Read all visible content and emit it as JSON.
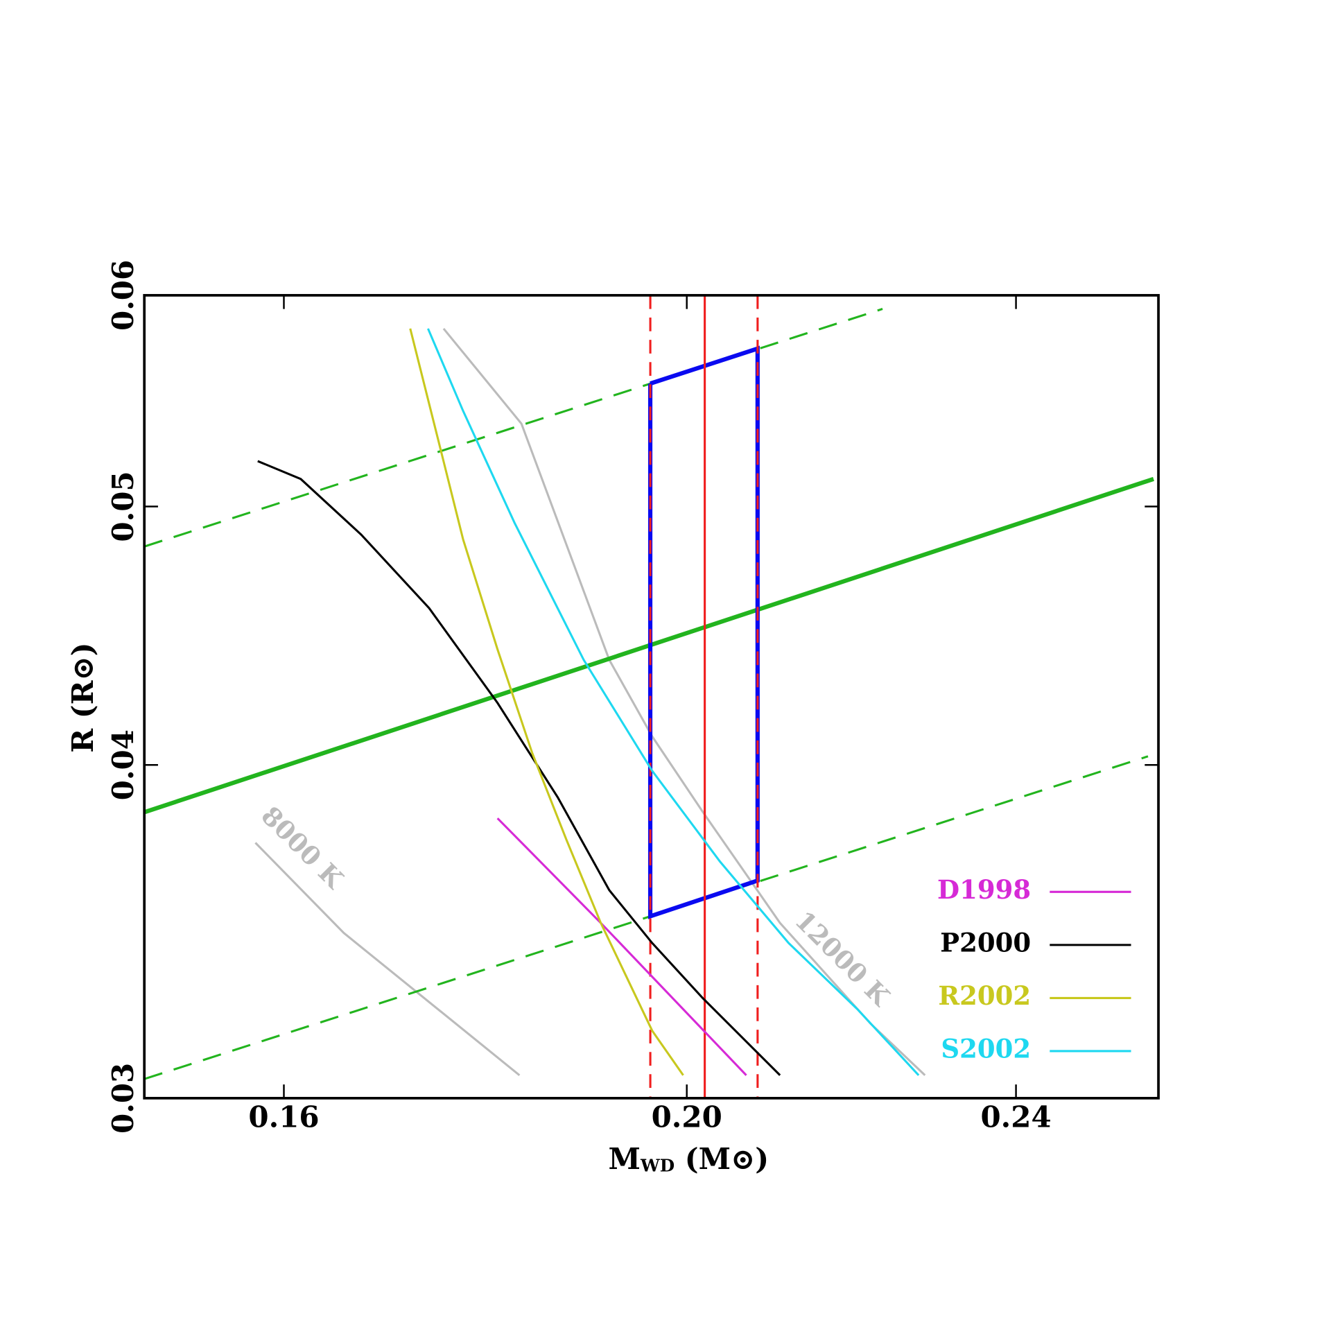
{
  "chart_data": {
    "type": "line",
    "xlabel": {
      "main": "M",
      "sub": "WD",
      "rest": " (M⊙)"
    },
    "ylabel": "R (R⊙)",
    "xscale": "log",
    "yscale": "log",
    "xlim": [
      0.1481,
      0.2597
    ],
    "ylim": [
      0.03,
      0.06
    ],
    "xticks": [
      0.16,
      {
        "value": 0.2,
        "label": "0.20"
      },
      0.24
    ],
    "yticks": [
      0.03,
      0.04,
      0.05,
      0.06
    ],
    "legend": "lower right",
    "series": [
      {
        "name": "D1998",
        "color": "#d62ad6",
        "x": [
          0.1801,
          0.1907,
          0.2067
        ],
        "values": [
          0.0382,
          0.0349,
          0.0306
        ]
      },
      {
        "name": "P2000",
        "color": "#000000",
        "x": [
          0.1577,
          0.1615,
          0.167,
          0.1734,
          0.1801,
          0.1862,
          0.1916,
          0.1962,
          0.2018,
          0.2106
        ],
        "values": [
          0.052,
          0.0512,
          0.0488,
          0.0458,
          0.0422,
          0.0389,
          0.0359,
          0.0343,
          0.0327,
          0.0306
        ]
      },
      {
        "name": "R2002",
        "color": "#c8c81e",
        "x": [
          0.1716,
          0.1742,
          0.1767,
          0.1801,
          0.1836,
          0.1871,
          0.1907,
          0.1962,
          0.1996
        ],
        "values": [
          0.0583,
          0.0531,
          0.0486,
          0.0442,
          0.0404,
          0.0375,
          0.0349,
          0.0318,
          0.0306
        ]
      },
      {
        "name": "S2002",
        "color": "#1ed8f0",
        "x": [
          0.1733,
          0.1767,
          0.1818,
          0.1889,
          0.1962,
          0.2037,
          0.2116,
          0.2198,
          0.2274
        ],
        "values": [
          0.0583,
          0.0543,
          0.0493,
          0.0438,
          0.0398,
          0.0368,
          0.0343,
          0.0324,
          0.0306
        ]
      }
    ],
    "lines": [
      {
        "color": "#bbbbbb",
        "width": 2.5,
        "dashed": false,
        "x": [
          0.1575,
          0.1654,
          0.1823
        ],
        "values": [
          0.0374,
          0.0346,
          0.0306
        ]
      },
      {
        "color": "#bbbbbb",
        "width": 2.5,
        "dashed": false,
        "x": [
          0.1748,
          0.1825,
          0.1916,
          0.1962,
          0.2018,
          0.2106,
          0.2214,
          0.2282
        ],
        "values": [
          0.0583,
          0.0537,
          0.0438,
          0.041,
          0.0384,
          0.0349,
          0.032,
          0.0306
        ]
      },
      {
        "color": "#22b41e",
        "width": 5,
        "dashed": false,
        "x": [
          0.1481,
          0.259
        ],
        "values": [
          0.0384,
          0.0512
        ]
      },
      {
        "color": "#22b41e",
        "width": 2.5,
        "dashed": true,
        "x": [
          0.1481,
          0.2229
        ],
        "values": [
          0.0483,
          0.0593
        ]
      },
      {
        "color": "#22b41e",
        "width": 2.5,
        "dashed": true,
        "x": [
          0.1481,
          0.2582
        ],
        "values": [
          0.0305,
          0.0403
        ]
      },
      {
        "color": "#0a0af0",
        "width": 5,
        "dashed": false,
        "x": [
          0.196,
          0.208,
          0.208,
          0.196,
          0.196
        ],
        "values": [
          0.0556,
          0.0573,
          0.0362,
          0.0351,
          0.0556
        ]
      }
    ],
    "vlines": [
      {
        "x": 0.196,
        "color": "#f01e1e",
        "dashed": true
      },
      {
        "x": 0.202,
        "color": "#f01e1e",
        "dashed": false
      },
      {
        "x": 0.208,
        "color": "#f01e1e",
        "dashed": true
      }
    ],
    "annotations": [
      {
        "text": "8000 K",
        "x": 0.1615,
        "y": 0.0372
      },
      {
        "text": "12000 K",
        "x": 0.2178,
        "y": 0.0338
      }
    ]
  }
}
